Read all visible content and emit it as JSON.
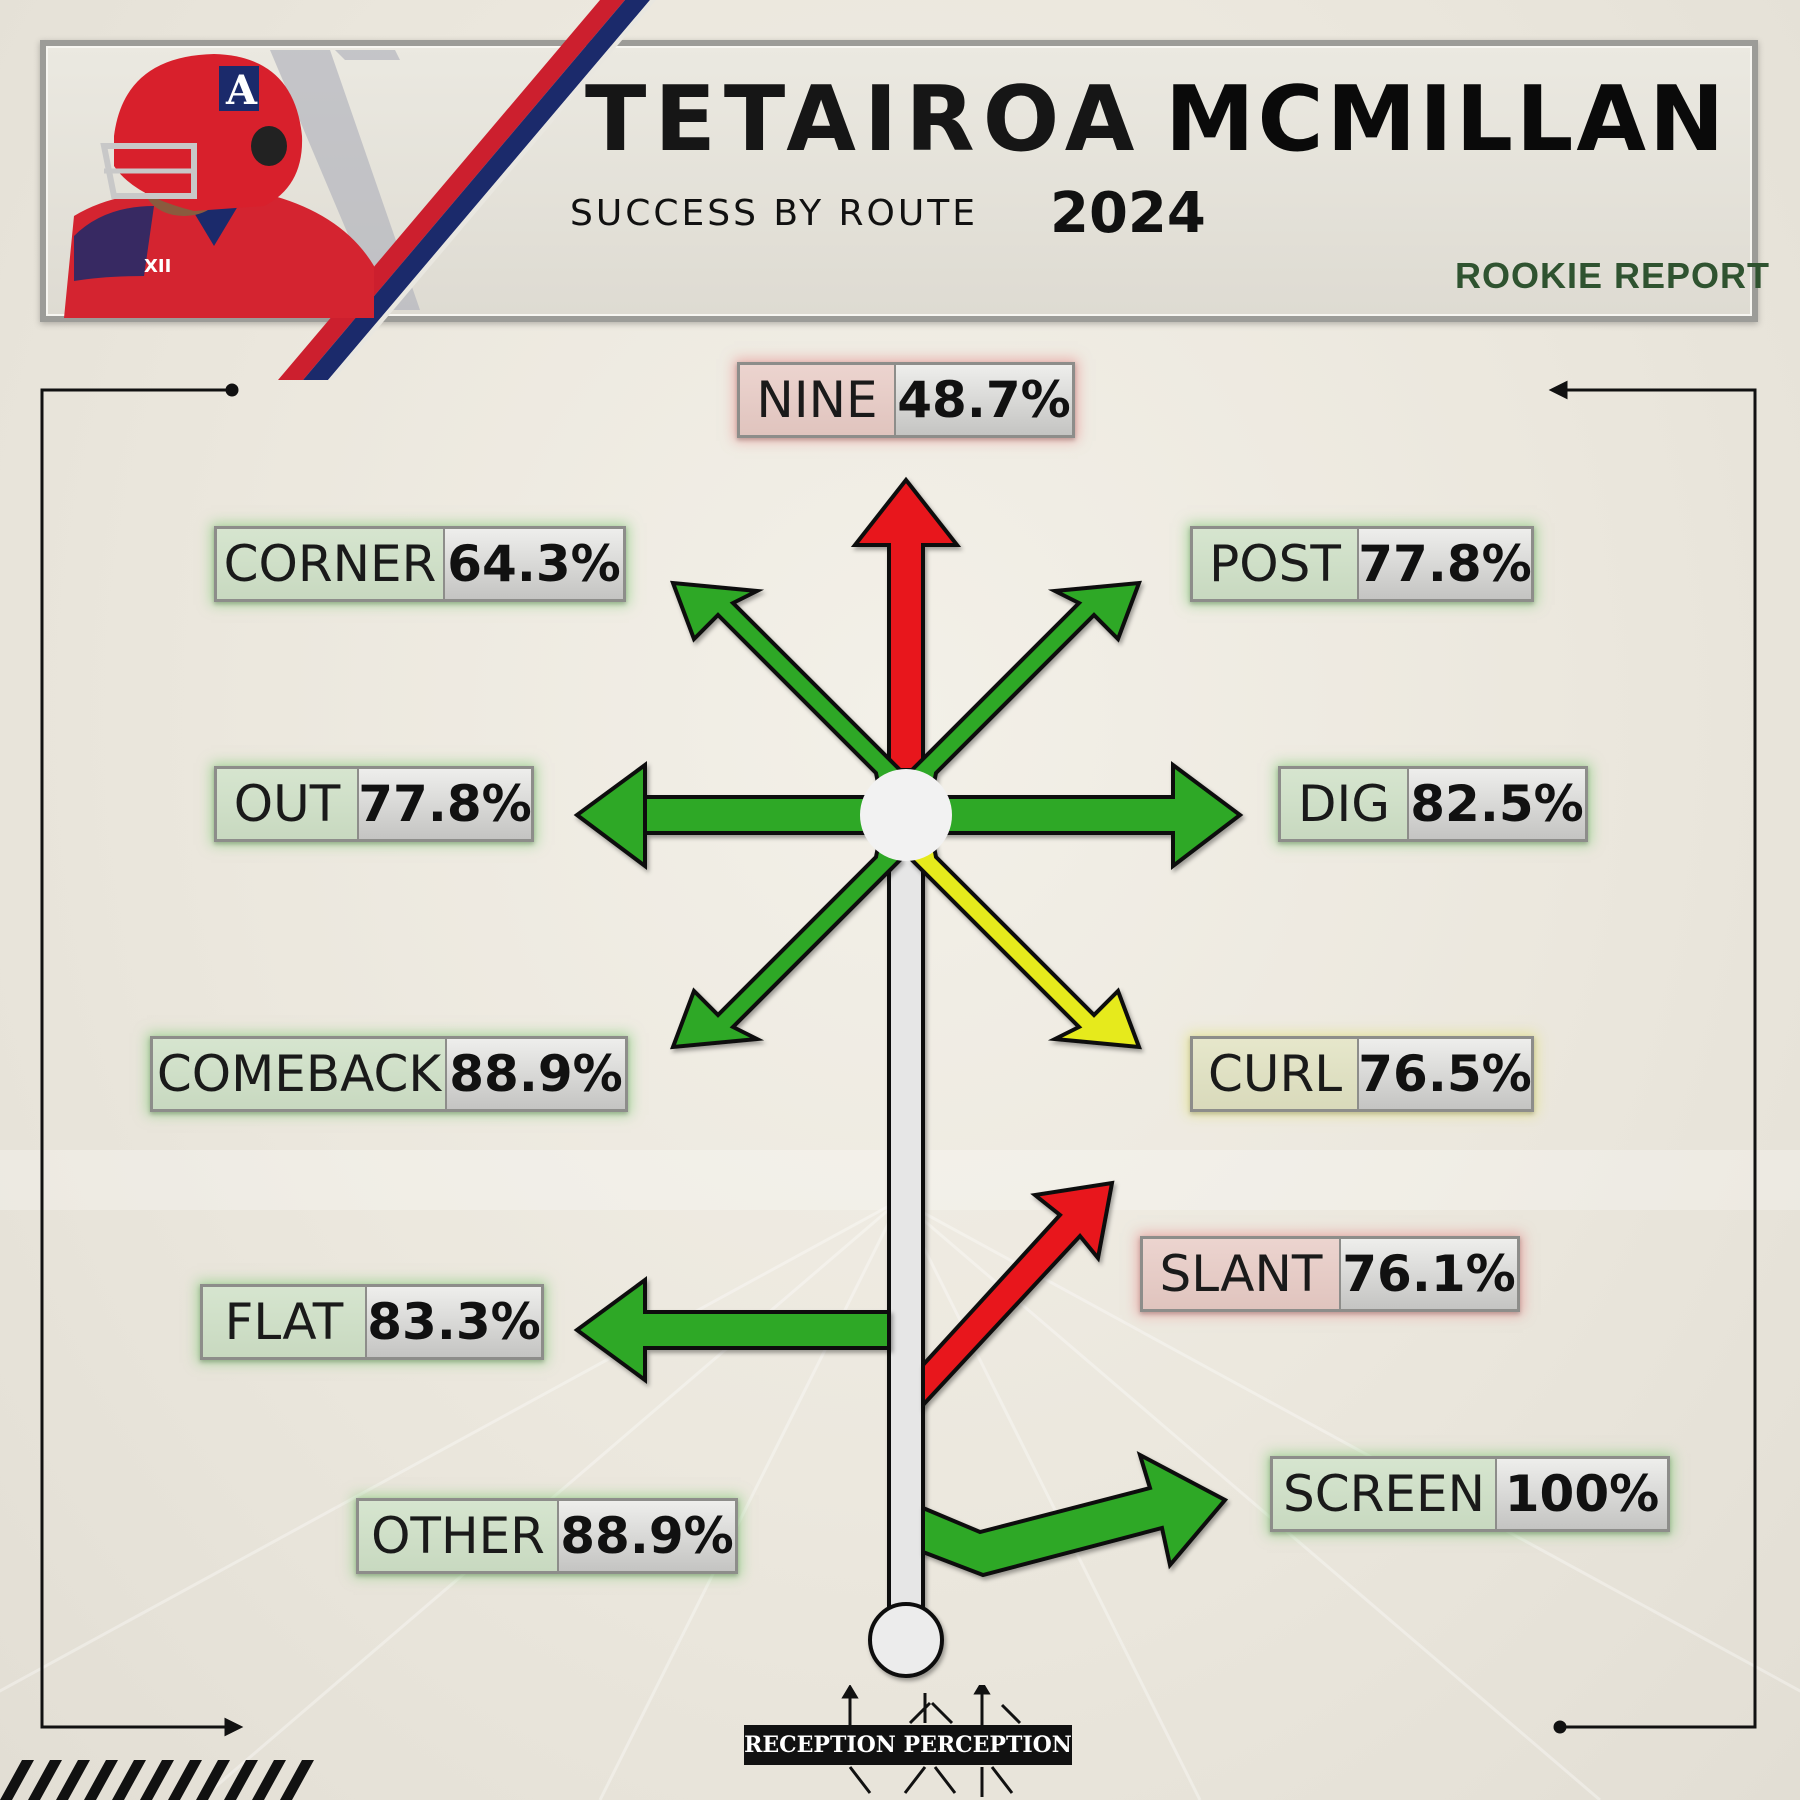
{
  "header": {
    "first_name": "TETAIROA",
    "last_name": "MCMILLAN",
    "subtitle": "SUCCESS BY ROUTE",
    "year": "2024",
    "tag": "ROOKIE REPORT"
  },
  "routes": {
    "nine": {
      "name": "NINE",
      "value": "48.7%",
      "color": "red"
    },
    "corner": {
      "name": "CORNER",
      "value": "64.3%",
      "color": "green"
    },
    "post": {
      "name": "POST",
      "value": "77.8%",
      "color": "green"
    },
    "out": {
      "name": "OUT",
      "value": "77.8%",
      "color": "green"
    },
    "dig": {
      "name": "DIG",
      "value": "82.5%",
      "color": "green"
    },
    "comeback": {
      "name": "COMEBACK",
      "value": "88.9%",
      "color": "green"
    },
    "curl": {
      "name": "CURL",
      "value": "76.5%",
      "color": "yellow"
    },
    "slant": {
      "name": "SLANT",
      "value": "76.1%",
      "color": "red"
    },
    "flat": {
      "name": "FLAT",
      "value": "83.3%",
      "color": "green"
    },
    "screen": {
      "name": "SCREEN",
      "value": "100%",
      "color": "green"
    },
    "other": {
      "name": "OTHER",
      "value": "88.9%",
      "color": "green"
    }
  },
  "colors": {
    "green": "#2fa826",
    "red": "#e8191c",
    "yellow": "#e6ea1a",
    "team_red": "#cc1f2e",
    "team_navy": "#1b2a6b",
    "tag_green": "#2f5330"
  },
  "logo": {
    "text": "RECEPTION PERCEPTION"
  }
}
